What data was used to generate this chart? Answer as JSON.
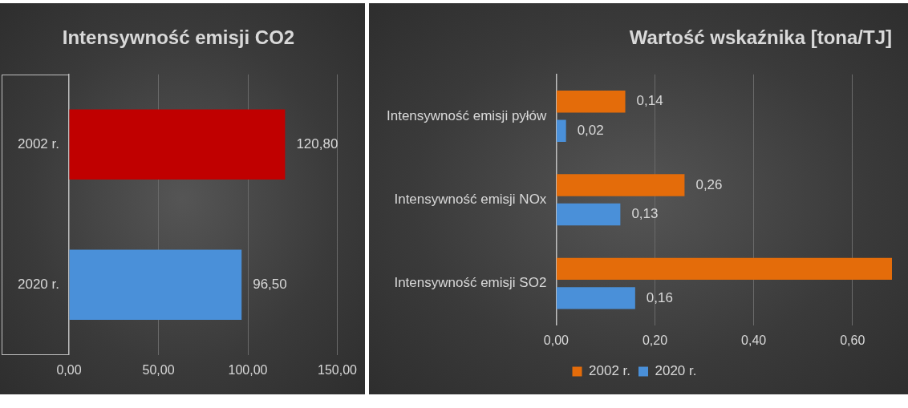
{
  "chart_data": [
    {
      "type": "bar",
      "orientation": "horizontal",
      "title": "Intensywność emisji CO2",
      "categories": [
        "2002 r.",
        "2020 r."
      ],
      "values": [
        120.8,
        96.5
      ],
      "colors": [
        "#c00000",
        "#4a90d9"
      ],
      "value_labels": [
        "120,80",
        "96,50"
      ],
      "xlim": [
        0,
        150
      ],
      "xticks": [
        {
          "value": 0,
          "label": "0,00"
        },
        {
          "value": 50,
          "label": "50,00"
        },
        {
          "value": 100,
          "label": "100,00"
        },
        {
          "value": 150,
          "label": "150,00"
        }
      ],
      "grid": "x",
      "legend": false
    },
    {
      "type": "bar",
      "orientation": "horizontal",
      "title": "Wartość wskaźnika [tona/TJ]",
      "categories": [
        "Intensywność emisji pyłów",
        "Intensywność emisji NOx",
        "Intensywność emisji SO2"
      ],
      "series": [
        {
          "name": "2002 r.",
          "color": "#e46c0a",
          "values": [
            0.14,
            0.26,
            0.68
          ],
          "value_labels": [
            "0,14",
            "0,26",
            null
          ]
        },
        {
          "name": "2020 r.",
          "color": "#4a90d9",
          "values": [
            0.02,
            0.13,
            0.16
          ],
          "value_labels": [
            "0,02",
            "0,13",
            "0,16"
          ]
        }
      ],
      "xlim": [
        0,
        0.68
      ],
      "xticks": [
        {
          "value": 0,
          "label": "0,00"
        },
        {
          "value": 0.2,
          "label": "0,20"
        },
        {
          "value": 0.4,
          "label": "0,40"
        },
        {
          "value": 0.6,
          "label": "0,60"
        }
      ],
      "grid": "x",
      "legend": "bottom"
    }
  ]
}
